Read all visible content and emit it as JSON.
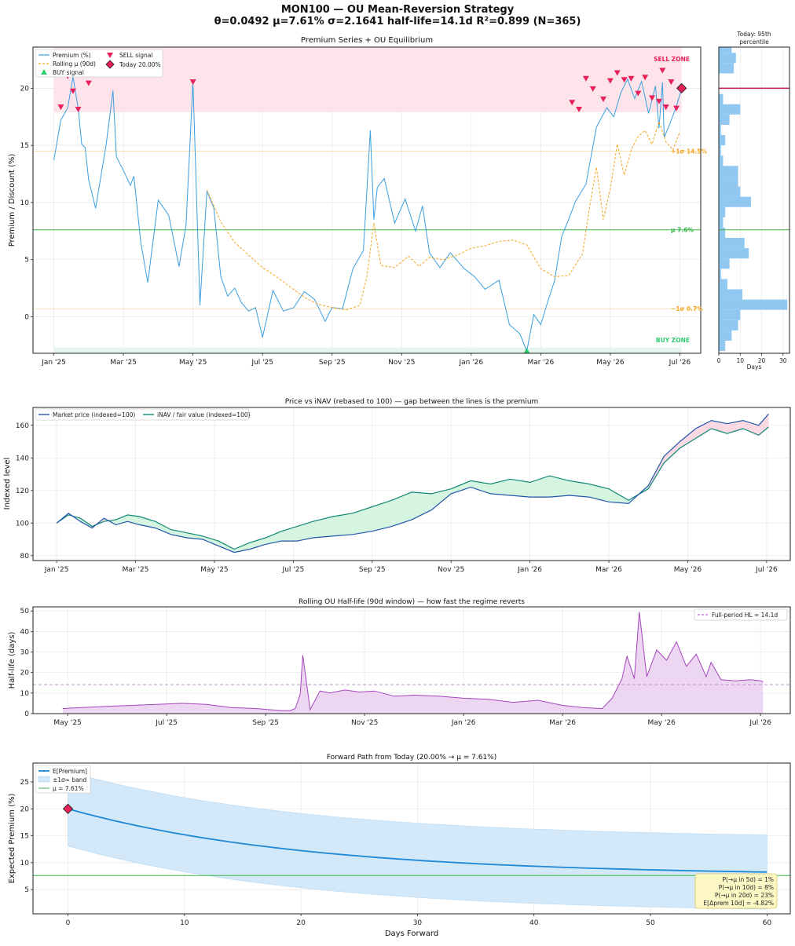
{
  "figure": {
    "suptitle_1": "MON100 — OU Mean-Reversion Strategy",
    "suptitle_2": "θ=0.0492  μ=7.61%  σ=2.1641  half-life=14.1d  R²=0.899  (N=365)"
  },
  "colors": {
    "premium": "#3a9ee0",
    "rolling": "#f5a623",
    "mu": "#3cb54a",
    "sell_zone": "#fde4ea",
    "sell": "#e8205a",
    "buy_zone": "#e6f6ec",
    "buy": "#2ecc71",
    "market": "#2255aa",
    "inav": "#118877",
    "gap_pos": "#d6f5e0",
    "gap_neg": "#fbd9e2",
    "halflife": "#a545bd",
    "halflife_fill": "#ecd6f2",
    "forward": "#1e88d6",
    "band": "#d3e8f8",
    "hist": "#90c8f2"
  },
  "chart_data": [
    {
      "id": "premium",
      "type": "line",
      "title": "Premium Series + OU Equilibrium",
      "ylabel": "Premium / Discount (%)",
      "xlabel": "",
      "x_ticks": [
        "Jan '25",
        "Mar '25",
        "May '25",
        "Jul '25",
        "Sep '25",
        "Nov '25",
        "Jan '26",
        "Mar '26",
        "May '26",
        "Jul '26"
      ],
      "x_range": [
        -0.6,
        18.6
      ],
      "y_ticks": [
        0,
        5,
        10,
        15,
        20
      ],
      "ylim": [
        -3.2,
        23.6
      ],
      "legend": {
        "position": "upper-left",
        "entries": [
          "Premium (%)",
          "Rolling μ (90d)",
          "BUY signal",
          "SELL signal",
          "Today 20.00%"
        ]
      },
      "zones": {
        "sell_label": "SELL ZONE",
        "sell_range": [
          17.9,
          23.6
        ],
        "buy_label": "BUY ZONE",
        "buy_range": [
          -3.2,
          -2.7
        ]
      },
      "levels": [
        {
          "label": "+1σ 14.5%",
          "value": 14.5
        },
        {
          "label": "μ 7.6%",
          "value": 7.61
        },
        {
          "label": "−1σ 0.7%",
          "value": 0.7
        }
      ],
      "premium_series": {
        "name": "Premium (%)",
        "x": [
          0,
          0.2,
          0.4,
          0.55,
          0.7,
          0.8,
          0.9,
          1.0,
          1.2,
          1.5,
          1.7,
          1.8,
          2.0,
          2.2,
          2.3,
          2.5,
          2.7,
          3.0,
          3.3,
          3.6,
          3.8,
          4.0,
          4.2,
          4.4,
          4.6,
          4.8,
          5.0,
          5.2,
          5.4,
          5.6,
          5.8,
          6.0,
          6.3,
          6.6,
          6.9,
          7.2,
          7.5,
          7.8,
          8.0,
          8.3,
          8.6,
          8.9,
          9.1,
          9.2,
          9.3,
          9.5,
          9.8,
          10.1,
          10.4,
          10.6,
          10.8,
          11.1,
          11.4,
          11.8,
          12.1,
          12.4,
          12.8,
          13.1,
          13.4,
          13.6,
          13.8,
          14.0,
          14.2,
          14.4,
          14.6,
          14.8,
          15.0,
          15.3,
          15.6,
          15.9,
          16.1,
          16.3,
          16.5,
          16.7,
          16.9,
          17.1,
          17.3,
          17.4,
          17.5,
          17.55,
          17.7,
          17.9,
          18.05
        ],
        "y": [
          13.7,
          17.2,
          18.3,
          21.0,
          18.2,
          15.1,
          14.8,
          12.0,
          9.5,
          15.0,
          19.8,
          14.0,
          12.8,
          11.5,
          12.3,
          6.5,
          3.0,
          10.2,
          8.9,
          4.4,
          8.0,
          20.6,
          1.0,
          11.0,
          9.5,
          3.5,
          1.8,
          2.5,
          1.2,
          0.5,
          0.8,
          -1.8,
          2.3,
          0.5,
          0.8,
          2.2,
          1.5,
          -0.4,
          0.8,
          0.7,
          4.2,
          5.8,
          16.3,
          8.5,
          11.3,
          12.1,
          8.2,
          10.3,
          7.5,
          9.7,
          5.6,
          4.3,
          5.6,
          4.2,
          3.5,
          2.4,
          3.2,
          -0.7,
          -1.5,
          -3.0,
          0.2,
          -0.7,
          1.3,
          3.2,
          7.0,
          8.5,
          10.1,
          11.6,
          16.6,
          18.3,
          17.5,
          19.6,
          20.8,
          19.1,
          20.6,
          17.8,
          20.2,
          16.5,
          20.5,
          15.7,
          16.8,
          18.4,
          20.0
        ]
      },
      "rolling_mu": {
        "name": "Rolling μ (90d)",
        "x": [
          4.4,
          4.8,
          5.2,
          5.6,
          6.0,
          6.4,
          6.8,
          7.2,
          7.6,
          8.0,
          8.4,
          8.8,
          9.0,
          9.2,
          9.4,
          9.8,
          10.2,
          10.5,
          10.8,
          11.2,
          11.6,
          12.0,
          12.4,
          12.8,
          13.2,
          13.6,
          14.0,
          14.4,
          14.8,
          15.2,
          15.4,
          15.6,
          15.8,
          16.0,
          16.2,
          16.4,
          16.6,
          16.8,
          17.0,
          17.2,
          17.4,
          17.6,
          17.8,
          18.0
        ],
        "y": [
          11.1,
          8.3,
          6.5,
          5.4,
          4.3,
          3.5,
          2.6,
          1.7,
          1.1,
          0.8,
          0.6,
          1.0,
          3.5,
          8.2,
          4.5,
          4.3,
          5.3,
          4.4,
          5.2,
          5.0,
          5.4,
          6.0,
          6.2,
          6.6,
          6.7,
          6.3,
          4.2,
          3.5,
          3.6,
          5.5,
          9.5,
          13.1,
          8.5,
          11.2,
          15.1,
          12.4,
          14.6,
          15.8,
          16.3,
          15.1,
          17.1,
          15.3,
          14.6,
          16.2
        ]
      },
      "sell_signals": {
        "name": "SELL signal",
        "x": [
          0.2,
          0.4,
          0.55,
          0.7,
          1.0,
          4.0,
          14.9,
          15.1,
          15.3,
          15.5,
          15.8,
          16.0,
          16.2,
          16.4,
          16.6,
          16.8,
          17.0,
          17.2,
          17.4,
          17.5,
          17.6,
          17.75,
          17.9
        ],
        "y": [
          18.3,
          21.0,
          19.7,
          18.1,
          20.4,
          20.5,
          18.7,
          18.1,
          20.8,
          19.9,
          19.0,
          20.6,
          21.3,
          20.7,
          20.8,
          19.5,
          20.9,
          19.1,
          18.8,
          21.5,
          18.3,
          20.5,
          18.2
        ]
      },
      "buy_signals": {
        "name": "BUY signal",
        "x": [
          13.6
        ],
        "y": [
          -3.0
        ]
      },
      "today": {
        "name": "Today 20.00%",
        "x": 18.05,
        "y": 20.0
      }
    },
    {
      "id": "histogram",
      "type": "bar",
      "orientation": "horizontal",
      "title": "Today: 95th percentile",
      "title_line_1": "Today: 95th",
      "title_line_2": "percentile",
      "xlabel": "Days",
      "x_ticks": [
        0,
        10,
        20,
        30
      ],
      "xlim": [
        0,
        33
      ],
      "bin_low": -3.0,
      "bin_width": 0.9,
      "counts": [
        3,
        6,
        9,
        10,
        32,
        11,
        4,
        1,
        5,
        14,
        12,
        3,
        2,
        3,
        15,
        10,
        9,
        9,
        2,
        1,
        3,
        1,
        5,
        10,
        2,
        0,
        0,
        7,
        8,
        6,
        2,
        0
      ],
      "today_line": 20.0,
      "mu_line": 7.61
    },
    {
      "id": "price_vs_inav",
      "type": "line",
      "title": "Price vs iNAV (rebased to 100) — gap between the lines is the premium",
      "ylabel": "Indexed level",
      "x_ticks": [
        "Jan '25",
        "Mar '25",
        "May '25",
        "Jul '25",
        "Sep '25",
        "Nov '25",
        "Jan '26",
        "Mar '26",
        "May '26",
        "Jul '26"
      ],
      "x_range": [
        -0.6,
        18.6
      ],
      "y_ticks": [
        80,
        100,
        120,
        140,
        160
      ],
      "ylim": [
        77,
        171
      ],
      "legend": {
        "position": "upper-left"
      },
      "x": [
        0,
        0.3,
        0.6,
        0.9,
        1.2,
        1.5,
        1.8,
        2.1,
        2.5,
        2.9,
        3.3,
        3.7,
        4.1,
        4.5,
        4.9,
        5.3,
        5.7,
        6.1,
        6.5,
        7.0,
        7.5,
        8.0,
        8.5,
        9.0,
        9.5,
        10.0,
        10.5,
        11.0,
        11.5,
        12.0,
        12.5,
        13.0,
        13.5,
        14.0,
        14.5,
        15.0,
        15.4,
        15.8,
        16.2,
        16.6,
        17.0,
        17.4,
        17.8,
        18.05
      ],
      "series": [
        {
          "name": "Market price (indexed=100)",
          "values": [
            100,
            106,
            101,
            97,
            103,
            99,
            101,
            99,
            97,
            93,
            91,
            90,
            86,
            82,
            84,
            87,
            89,
            89,
            91,
            92,
            93,
            95,
            98,
            102,
            108,
            118,
            122,
            118,
            117,
            116,
            116,
            117,
            116,
            113,
            112,
            123,
            141,
            150,
            158,
            163,
            161,
            163,
            160,
            167
          ]
        },
        {
          "name": "iNAV / fair value (indexed=100)",
          "values": [
            100,
            105,
            103,
            98,
            101,
            102,
            105,
            104,
            101,
            96,
            94,
            92,
            89,
            84,
            88,
            91,
            95,
            98,
            101,
            104,
            106,
            110,
            114,
            119,
            118,
            121,
            126,
            124,
            127,
            125,
            129,
            126,
            124,
            121,
            114,
            121,
            137,
            146,
            152,
            158,
            155,
            158,
            154,
            159
          ]
        }
      ]
    },
    {
      "id": "half_life",
      "type": "area",
      "title": "Rolling OU Half-life (90d window) — how fast the regime reverts",
      "ylabel": "Half-life (days)",
      "x_ticks": [
        "May '25",
        "Jul '25",
        "Sep '25",
        "Nov '25",
        "Jan '26",
        "Mar '26",
        "May '26",
        "Jul '26"
      ],
      "x_range": [
        3.3,
        18.6
      ],
      "y_ticks": [
        0,
        10,
        20,
        30,
        40,
        50
      ],
      "ylim": [
        0,
        52
      ],
      "reference": {
        "name": "Full-period HL = 14.1d",
        "value": 14.1
      },
      "legend": {
        "position": "upper-right"
      },
      "x": [
        3.9,
        4.3,
        4.8,
        5.3,
        5.8,
        6.3,
        6.8,
        7.3,
        7.8,
        8.3,
        8.5,
        8.6,
        8.7,
        8.75,
        8.9,
        9.1,
        9.3,
        9.6,
        9.9,
        10.2,
        10.6,
        11.0,
        11.5,
        12.0,
        12.5,
        13.0,
        13.5,
        14.0,
        14.4,
        14.8,
        15.0,
        15.2,
        15.3,
        15.45,
        15.55,
        15.7,
        15.9,
        16.1,
        16.3,
        16.5,
        16.7,
        16.9,
        17.0,
        17.2,
        17.5,
        17.8,
        18.0,
        18.05
      ],
      "values": [
        2.5,
        3.0,
        3.5,
        4.0,
        4.5,
        5.0,
        4.5,
        3.0,
        2.5,
        1.5,
        1.5,
        2.5,
        9.5,
        28.5,
        2.0,
        11.0,
        10.0,
        11.5,
        10.5,
        11.0,
        8.5,
        9.0,
        8.5,
        7.5,
        7.0,
        5.5,
        6.5,
        4.0,
        3.0,
        2.5,
        7.5,
        17.0,
        28.0,
        17.0,
        49.5,
        18.0,
        31.0,
        26.0,
        35.0,
        23.0,
        29.0,
        18.0,
        25.0,
        16.5,
        16.0,
        16.5,
        16.0,
        15.5
      ]
    },
    {
      "id": "forward_path",
      "type": "line",
      "title": "Forward Path from Today (20.00% → μ = 7.61%)",
      "xlabel": "Days Forward",
      "ylabel": "Expected Premium (%)",
      "x_ticks": [
        0,
        10,
        20,
        30,
        40,
        50,
        60
      ],
      "xlim": [
        -3,
        62
      ],
      "y_ticks": [
        5,
        10,
        15,
        20,
        25
      ],
      "ylim": [
        0.5,
        28.5
      ],
      "today": 20.0,
      "mu": 7.61,
      "theta": 0.0492,
      "sigma": 2.1641,
      "horizon": 60,
      "legend": {
        "position": "upper-left",
        "entries": [
          "E[Premium]",
          "±1σ∞ band",
          "μ = 7.61%"
        ]
      },
      "stats": [
        "P(→μ in 5d) = 1%",
        "P(→μ in 10d) = 8%",
        "P(→μ in 20d) = 23%",
        "E[Δprem 10d] = -4.82%"
      ]
    }
  ]
}
